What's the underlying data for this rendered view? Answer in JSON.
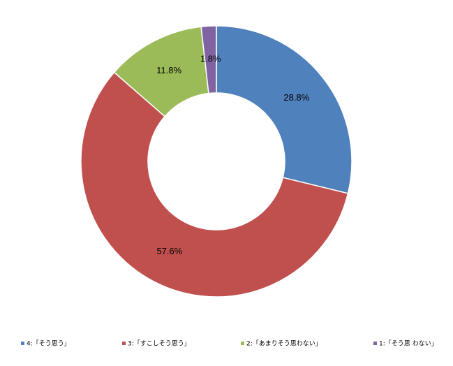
{
  "chart_data": {
    "type": "pie",
    "categories": [
      "4:「そう思う」",
      "3:「すこしそう思う」",
      "2:「あまりそう思わない」",
      "1:「そう思 わない」"
    ],
    "values": [
      28.8,
      57.6,
      11.8,
      1.8
    ],
    "value_labels": [
      "28.8%",
      "57.6%",
      "11.8%",
      "1.8%"
    ],
    "colors": [
      "#4f81bd",
      "#c0504d",
      "#9bbb59",
      "#8064a2"
    ],
    "donut": true,
    "legend": "bottom"
  }
}
